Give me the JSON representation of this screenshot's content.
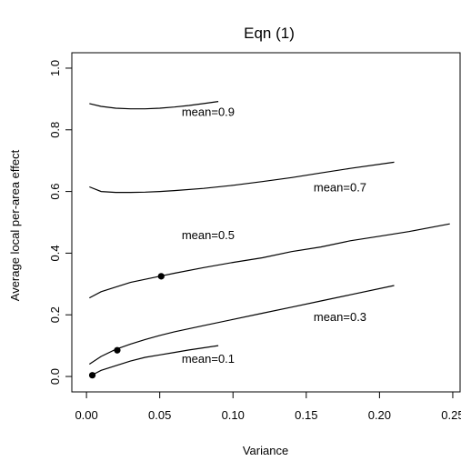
{
  "chart_data": {
    "type": "line",
    "title": "Eqn (1)",
    "xlabel": "Variance",
    "ylabel": "Average local per-area effect",
    "xlim": [
      -0.01,
      0.255
    ],
    "ylim": [
      -0.05,
      1.05
    ],
    "xticks": [
      0.0,
      0.05,
      0.1,
      0.15,
      0.2,
      0.25
    ],
    "xtick_labels": [
      "0.00",
      "0.05",
      "0.10",
      "0.15",
      "0.20",
      "0.25"
    ],
    "yticks": [
      0.0,
      0.2,
      0.4,
      0.6,
      0.8,
      1.0
    ],
    "ytick_labels": [
      "0.0",
      "0.2",
      "0.4",
      "0.6",
      "0.8",
      "1.0"
    ],
    "grid": false,
    "series": [
      {
        "name": "mean=0.1",
        "x": [
          0.002,
          0.01,
          0.02,
          0.03,
          0.04,
          0.05,
          0.06,
          0.07,
          0.08,
          0.09
        ],
        "y": [
          0.0,
          0.02,
          0.035,
          0.05,
          0.062,
          0.07,
          0.078,
          0.086,
          0.093,
          0.1
        ]
      },
      {
        "name": "mean=0.3",
        "x": [
          0.002,
          0.01,
          0.02,
          0.03,
          0.04,
          0.05,
          0.06,
          0.08,
          0.1,
          0.12,
          0.14,
          0.16,
          0.18,
          0.21
        ],
        "y": [
          0.04,
          0.065,
          0.088,
          0.105,
          0.12,
          0.133,
          0.145,
          0.165,
          0.185,
          0.205,
          0.225,
          0.245,
          0.265,
          0.295
        ]
      },
      {
        "name": "mean=0.5",
        "x": [
          0.002,
          0.01,
          0.02,
          0.03,
          0.04,
          0.05,
          0.06,
          0.08,
          0.1,
          0.12,
          0.14,
          0.16,
          0.18,
          0.2,
          0.22,
          0.248
        ],
        "y": [
          0.255,
          0.275,
          0.29,
          0.305,
          0.315,
          0.325,
          0.335,
          0.353,
          0.37,
          0.385,
          0.405,
          0.42,
          0.44,
          0.455,
          0.47,
          0.495
        ]
      },
      {
        "name": "mean=0.7",
        "x": [
          0.002,
          0.01,
          0.02,
          0.03,
          0.04,
          0.05,
          0.06,
          0.08,
          0.1,
          0.12,
          0.14,
          0.16,
          0.18,
          0.21
        ],
        "y": [
          0.615,
          0.6,
          0.597,
          0.597,
          0.598,
          0.6,
          0.603,
          0.61,
          0.62,
          0.632,
          0.645,
          0.66,
          0.675,
          0.695
        ]
      },
      {
        "name": "mean=0.9",
        "x": [
          0.002,
          0.01,
          0.02,
          0.03,
          0.04,
          0.05,
          0.06,
          0.07,
          0.08,
          0.09
        ],
        "y": [
          0.885,
          0.876,
          0.87,
          0.868,
          0.868,
          0.87,
          0.874,
          0.879,
          0.885,
          0.892
        ]
      }
    ],
    "points": [
      {
        "x": 0.004,
        "y": 0.004
      },
      {
        "x": 0.021,
        "y": 0.085
      },
      {
        "x": 0.051,
        "y": 0.325
      }
    ],
    "annotations": [
      {
        "text": "mean=0.9",
        "x": 0.065,
        "y": 0.845
      },
      {
        "text": "mean=0.7",
        "x": 0.155,
        "y": 0.6
      },
      {
        "text": "mean=0.5",
        "x": 0.065,
        "y": 0.445
      },
      {
        "text": "mean=0.3",
        "x": 0.155,
        "y": 0.18
      },
      {
        "text": "mean=0.1",
        "x": 0.065,
        "y": 0.045
      }
    ]
  }
}
